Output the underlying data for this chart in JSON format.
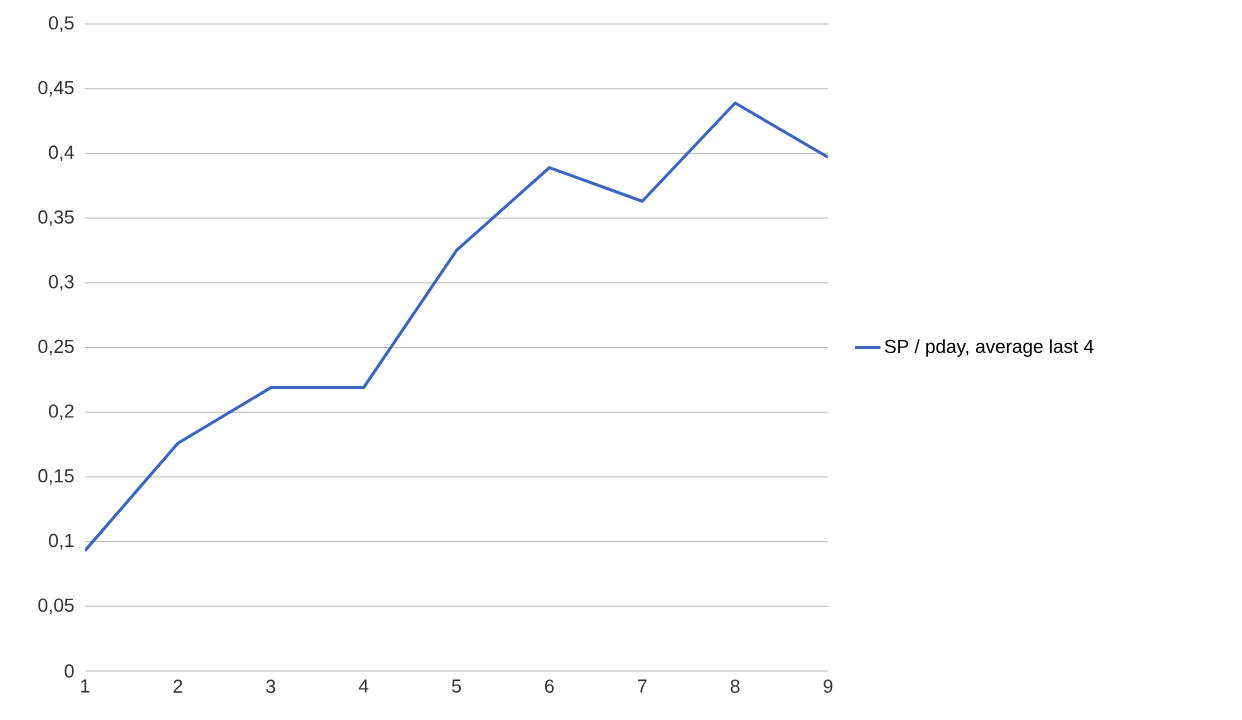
{
  "chart_data": {
    "type": "line",
    "x": [
      1,
      2,
      3,
      4,
      5,
      6,
      7,
      8,
      9
    ],
    "series": [
      {
        "name": "SP / pday, average last 4",
        "color": "#3a66bf",
        "values": [
          0.093,
          0.176,
          0.219,
          0.219,
          0.325,
          0.389,
          0.363,
          0.439,
          0.397
        ]
      }
    ],
    "xlim": [
      1,
      9
    ],
    "xticks": [
      1,
      2,
      3,
      4,
      5,
      6,
      7,
      8,
      9
    ],
    "ylim": [
      0,
      0.5
    ],
    "yticks": [
      {
        "value": 0,
        "label": "0"
      },
      {
        "value": 0.05,
        "label": "0,05"
      },
      {
        "value": 0.1,
        "label": "0,1"
      },
      {
        "value": 0.15,
        "label": "0,15"
      },
      {
        "value": 0.2,
        "label": "0,2"
      },
      {
        "value": 0.25,
        "label": "0,25"
      },
      {
        "value": 0.3,
        "label": "0,3"
      },
      {
        "value": 0.35,
        "label": "0,35"
      },
      {
        "value": 0.4,
        "label": "0,4"
      },
      {
        "value": 0.45,
        "label": "0,45"
      },
      {
        "value": 0.5,
        "label": "0,5"
      }
    ],
    "grid": "y",
    "legend": "right",
    "marker": "none",
    "line_style": "solid"
  }
}
